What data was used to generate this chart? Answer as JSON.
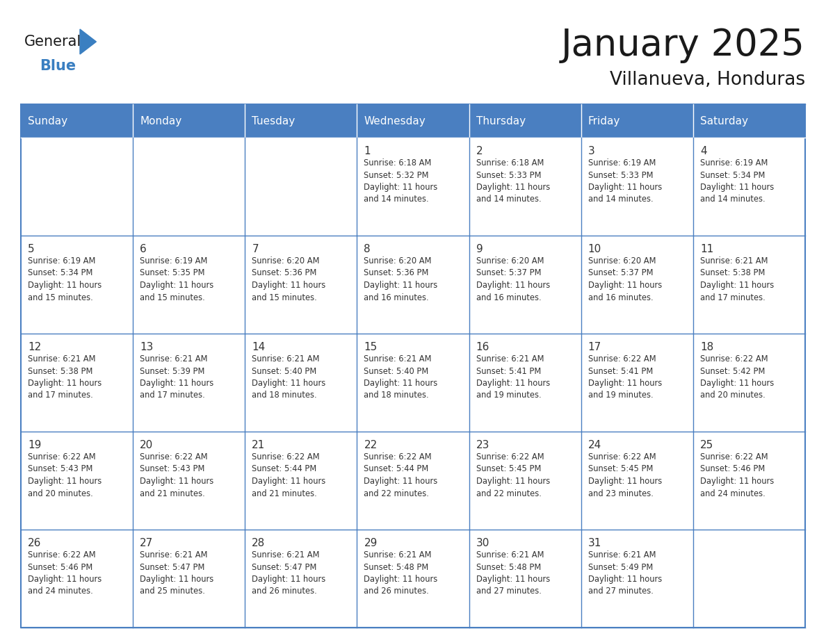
{
  "title": "January 2025",
  "subtitle": "Villanueva, Honduras",
  "days_of_week": [
    "Sunday",
    "Monday",
    "Tuesday",
    "Wednesday",
    "Thursday",
    "Friday",
    "Saturday"
  ],
  "header_bg": "#4a7fc1",
  "header_text": "#FFFFFF",
  "border_color": "#4a7fc1",
  "title_color": "#1a1a1a",
  "subtitle_color": "#1a1a1a",
  "text_color": "#333333",
  "logo_general_color": "#1a1a1a",
  "logo_blue_color": "#3a7fc1",
  "calendar_data": [
    [
      "",
      "",
      "",
      "1\nSunrise: 6:18 AM\nSunset: 5:32 PM\nDaylight: 11 hours\nand 14 minutes.",
      "2\nSunrise: 6:18 AM\nSunset: 5:33 PM\nDaylight: 11 hours\nand 14 minutes.",
      "3\nSunrise: 6:19 AM\nSunset: 5:33 PM\nDaylight: 11 hours\nand 14 minutes.",
      "4\nSunrise: 6:19 AM\nSunset: 5:34 PM\nDaylight: 11 hours\nand 14 minutes."
    ],
    [
      "5\nSunrise: 6:19 AM\nSunset: 5:34 PM\nDaylight: 11 hours\nand 15 minutes.",
      "6\nSunrise: 6:19 AM\nSunset: 5:35 PM\nDaylight: 11 hours\nand 15 minutes.",
      "7\nSunrise: 6:20 AM\nSunset: 5:36 PM\nDaylight: 11 hours\nand 15 minutes.",
      "8\nSunrise: 6:20 AM\nSunset: 5:36 PM\nDaylight: 11 hours\nand 16 minutes.",
      "9\nSunrise: 6:20 AM\nSunset: 5:37 PM\nDaylight: 11 hours\nand 16 minutes.",
      "10\nSunrise: 6:20 AM\nSunset: 5:37 PM\nDaylight: 11 hours\nand 16 minutes.",
      "11\nSunrise: 6:21 AM\nSunset: 5:38 PM\nDaylight: 11 hours\nand 17 minutes."
    ],
    [
      "12\nSunrise: 6:21 AM\nSunset: 5:38 PM\nDaylight: 11 hours\nand 17 minutes.",
      "13\nSunrise: 6:21 AM\nSunset: 5:39 PM\nDaylight: 11 hours\nand 17 minutes.",
      "14\nSunrise: 6:21 AM\nSunset: 5:40 PM\nDaylight: 11 hours\nand 18 minutes.",
      "15\nSunrise: 6:21 AM\nSunset: 5:40 PM\nDaylight: 11 hours\nand 18 minutes.",
      "16\nSunrise: 6:21 AM\nSunset: 5:41 PM\nDaylight: 11 hours\nand 19 minutes.",
      "17\nSunrise: 6:22 AM\nSunset: 5:41 PM\nDaylight: 11 hours\nand 19 minutes.",
      "18\nSunrise: 6:22 AM\nSunset: 5:42 PM\nDaylight: 11 hours\nand 20 minutes."
    ],
    [
      "19\nSunrise: 6:22 AM\nSunset: 5:43 PM\nDaylight: 11 hours\nand 20 minutes.",
      "20\nSunrise: 6:22 AM\nSunset: 5:43 PM\nDaylight: 11 hours\nand 21 minutes.",
      "21\nSunrise: 6:22 AM\nSunset: 5:44 PM\nDaylight: 11 hours\nand 21 minutes.",
      "22\nSunrise: 6:22 AM\nSunset: 5:44 PM\nDaylight: 11 hours\nand 22 minutes.",
      "23\nSunrise: 6:22 AM\nSunset: 5:45 PM\nDaylight: 11 hours\nand 22 minutes.",
      "24\nSunrise: 6:22 AM\nSunset: 5:45 PM\nDaylight: 11 hours\nand 23 minutes.",
      "25\nSunrise: 6:22 AM\nSunset: 5:46 PM\nDaylight: 11 hours\nand 24 minutes."
    ],
    [
      "26\nSunrise: 6:22 AM\nSunset: 5:46 PM\nDaylight: 11 hours\nand 24 minutes.",
      "27\nSunrise: 6:21 AM\nSunset: 5:47 PM\nDaylight: 11 hours\nand 25 minutes.",
      "28\nSunrise: 6:21 AM\nSunset: 5:47 PM\nDaylight: 11 hours\nand 26 minutes.",
      "29\nSunrise: 6:21 AM\nSunset: 5:48 PM\nDaylight: 11 hours\nand 26 minutes.",
      "30\nSunrise: 6:21 AM\nSunset: 5:48 PM\nDaylight: 11 hours\nand 27 minutes.",
      "31\nSunrise: 6:21 AM\nSunset: 5:49 PM\nDaylight: 11 hours\nand 27 minutes.",
      ""
    ]
  ]
}
